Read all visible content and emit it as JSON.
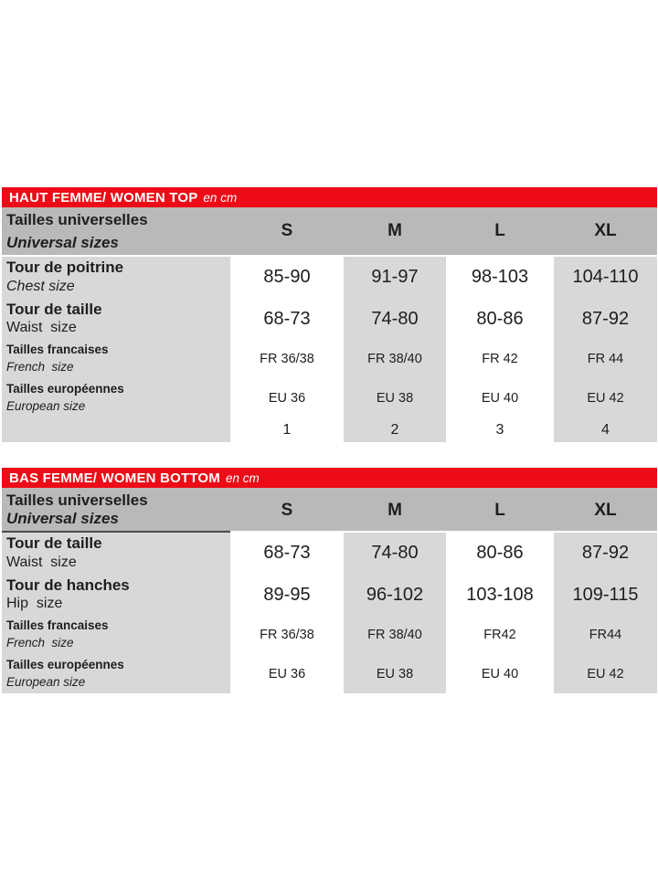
{
  "colors": {
    "accent_red": "#ec0b16",
    "header_band_gray": "#b9b9b9",
    "cell_gray": "#d8d8d8",
    "text": "#1f1e1e",
    "title_text": "#ffffff"
  },
  "tables": [
    {
      "id": "women-top",
      "title": "HAUT FEMME/ WOMEN TOP",
      "unit": "en cm",
      "header": {
        "label_fr": "Tailles universelles",
        "label_en": "Universal sizes",
        "underline": false,
        "sizes": [
          "S",
          "M",
          "L",
          "XL"
        ]
      },
      "rows": [
        {
          "label_fr": "Tour de poitrine",
          "label_en": "Chest size",
          "en_italic": true,
          "kind": "measure",
          "text_size": "lg",
          "val_size": "lg",
          "values": [
            "85-90",
            "91-97",
            "98-103",
            "104-110"
          ]
        },
        {
          "label_fr": "Tour de taille",
          "label_en": "Waist  size",
          "en_italic": false,
          "kind": "measure",
          "text_size": "lg",
          "val_size": "lg",
          "values": [
            "68-73",
            "74-80",
            "80-86",
            "87-92"
          ]
        },
        {
          "label_fr": "Tailles francaises",
          "label_en": "French  size",
          "en_italic": true,
          "kind": "sizecode",
          "text_size": "sm",
          "val_size": "sm",
          "values": [
            "FR 36/38",
            "FR 38/40",
            "FR 42",
            "FR 44"
          ]
        },
        {
          "label_fr": "Tailles européennes",
          "label_en": "European size",
          "en_italic": true,
          "kind": "sizecode",
          "text_size": "sm",
          "val_size": "sm",
          "values": [
            "EU 36",
            "EU 38",
            "EU 40",
            "EU 42"
          ]
        },
        {
          "label_fr": "",
          "label_en": "",
          "en_italic": false,
          "kind": "numbers",
          "text_size": "sm",
          "val_size": "num",
          "values": [
            "1",
            "2",
            "3",
            "4"
          ]
        }
      ]
    },
    {
      "id": "women-bottom",
      "title": "BAS FEMME/ WOMEN BOTTOM",
      "unit": "en cm",
      "header": {
        "label_fr": "Tailles universelles",
        "label_en": "Universal sizes",
        "underline": true,
        "sizes": [
          "S",
          "M",
          "L",
          "XL"
        ]
      },
      "rows": [
        {
          "label_fr": "Tour de taille",
          "label_en": "Waist  size",
          "en_italic": false,
          "kind": "measure",
          "text_size": "lg",
          "val_size": "lg",
          "values": [
            "68-73",
            "74-80",
            "80-86",
            "87-92"
          ]
        },
        {
          "label_fr": "Tour de hanches",
          "label_en": "Hip  size",
          "en_italic": false,
          "kind": "measure",
          "text_size": "lg",
          "val_size": "lg",
          "values": [
            "89-95",
            "96-102",
            "103-108",
            "109-115"
          ]
        },
        {
          "label_fr": "Tailles francaises",
          "label_en": "French  size",
          "en_italic": true,
          "kind": "sizecode",
          "text_size": "sm",
          "val_size": "sm",
          "values": [
            "FR 36/38",
            "FR 38/40",
            "FR42",
            "FR44"
          ]
        },
        {
          "label_fr": "Tailles européennes",
          "label_en": "European size",
          "en_italic": true,
          "kind": "sizecode",
          "text_size": "sm",
          "val_size": "sm",
          "values": [
            "EU 36",
            "EU 38",
            "EU 40",
            "EU 42"
          ]
        }
      ]
    }
  ]
}
